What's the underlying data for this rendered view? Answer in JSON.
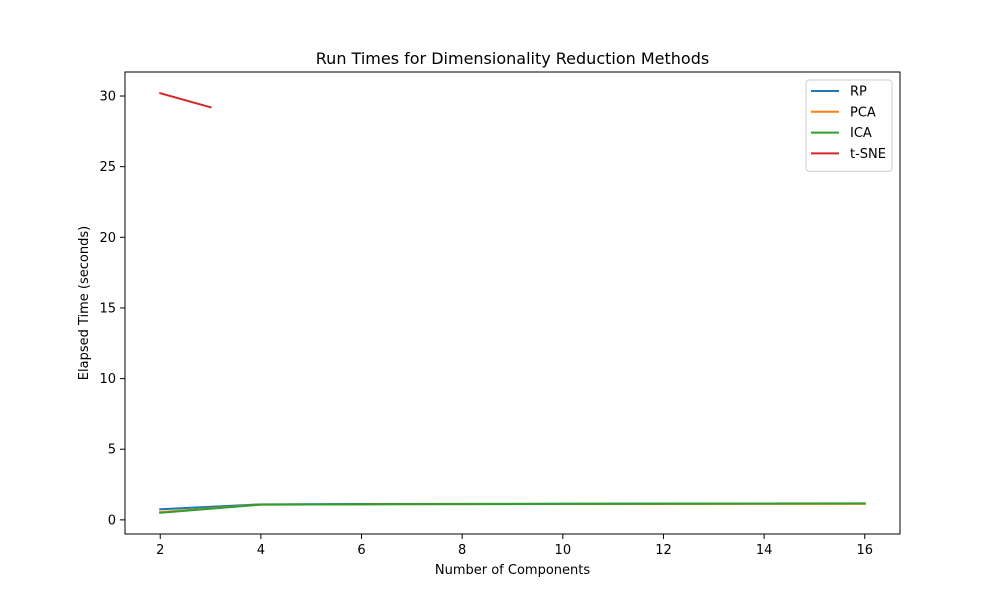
{
  "chart_data": {
    "type": "line",
    "title": "Run Times for Dimensionality Reduction Methods",
    "xlabel": "Number of Components",
    "ylabel": "Elapsed Time (seconds)",
    "xlim": [
      1.3,
      16.7
    ],
    "ylim": [
      -1.0,
      31.7
    ],
    "xticks": [
      2,
      4,
      6,
      8,
      10,
      12,
      14,
      16
    ],
    "yticks": [
      0,
      5,
      10,
      15,
      20,
      25,
      30
    ],
    "grid": false,
    "legend_position": "top-right",
    "series": [
      {
        "name": "RP",
        "color": "#1f77b4",
        "x": [
          2,
          4,
          6,
          8,
          10,
          12,
          14,
          16
        ],
        "y": [
          0.75,
          1.1,
          1.12,
          1.13,
          1.14,
          1.15,
          1.15,
          1.16
        ]
      },
      {
        "name": "PCA",
        "color": "#ff7f0e",
        "x": [
          2,
          4,
          6,
          8,
          10,
          12,
          14,
          16
        ],
        "y": [
          0.55,
          1.08,
          1.1,
          1.11,
          1.12,
          1.12,
          1.13,
          1.13
        ]
      },
      {
        "name": "ICA",
        "color": "#2ca02c",
        "x": [
          2,
          4,
          6,
          8,
          10,
          12,
          14,
          16
        ],
        "y": [
          0.5,
          1.08,
          1.1,
          1.12,
          1.13,
          1.14,
          1.16,
          1.17
        ]
      },
      {
        "name": "t-SNE",
        "color": "#d62728",
        "x": [
          2,
          3
        ],
        "y": [
          30.2,
          29.2
        ]
      }
    ]
  }
}
